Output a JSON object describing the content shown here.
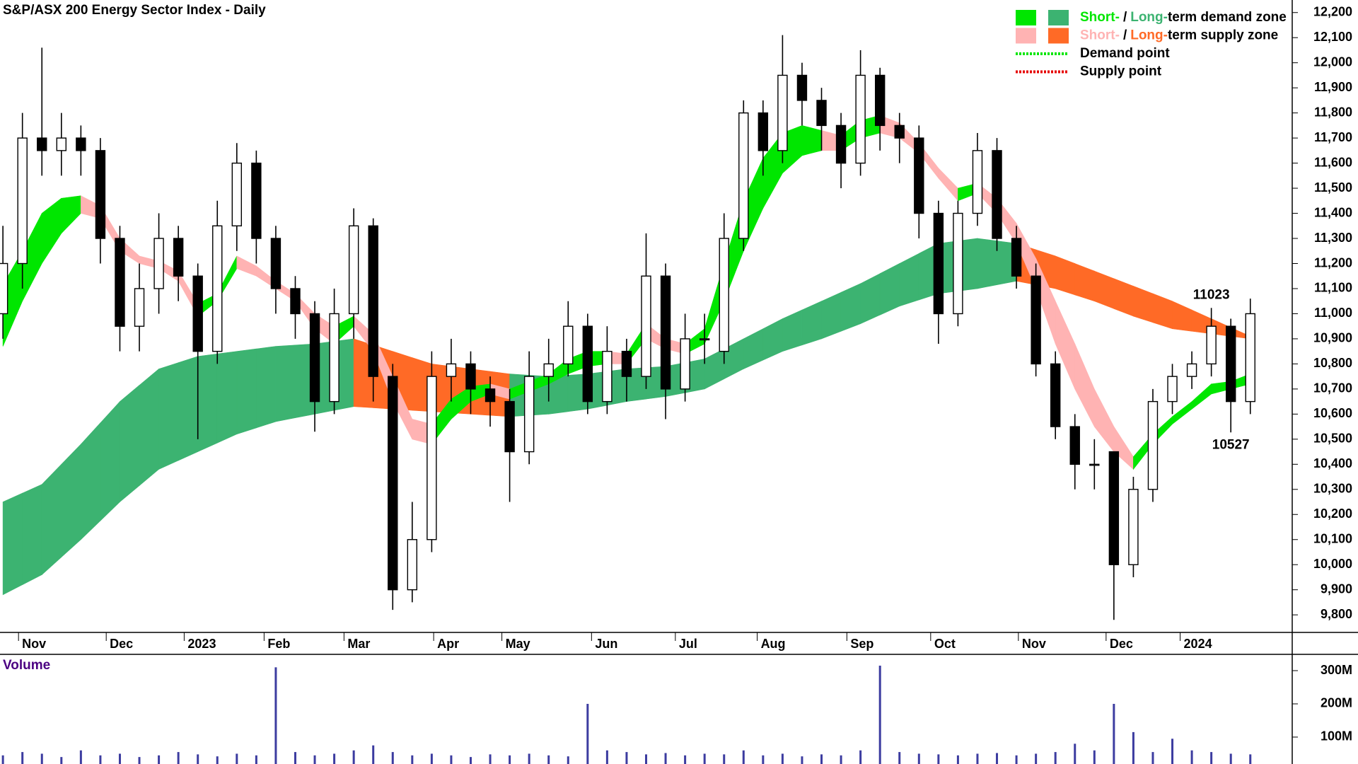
{
  "chart_data": {
    "type": "candlestick",
    "title": "S&P/ASX 200 Energy Sector Index - Daily",
    "xlim": [
      -0.15,
      66.15
    ],
    "xticks": [
      {
        "value": 0.8,
        "label": "Nov"
      },
      {
        "value": 5.3,
        "label": "Dec"
      },
      {
        "value": 9.3,
        "label": "2023"
      },
      {
        "value": 13.4,
        "label": "Feb"
      },
      {
        "value": 17.5,
        "label": "Mar"
      },
      {
        "value": 22.1,
        "label": "Apr"
      },
      {
        "value": 25.6,
        "label": "May"
      },
      {
        "value": 30.2,
        "label": "Jun"
      },
      {
        "value": 34.5,
        "label": "Jul"
      },
      {
        "value": 38.7,
        "label": "Aug"
      },
      {
        "value": 43.3,
        "label": "Sep"
      },
      {
        "value": 47.6,
        "label": "Oct"
      },
      {
        "value": 52.1,
        "label": "Nov"
      },
      {
        "value": 56.6,
        "label": "Dec"
      },
      {
        "value": 60.4,
        "label": "2024"
      }
    ],
    "ylim": [
      9730,
      12250
    ],
    "yticks": [
      {
        "value": 9800,
        "label": "9,800"
      },
      {
        "value": 9900,
        "label": "9,900"
      },
      {
        "value": 10000,
        "label": "10,000"
      },
      {
        "value": 10100,
        "label": "10,100"
      },
      {
        "value": 10200,
        "label": "10,200"
      },
      {
        "value": 10300,
        "label": "10,300"
      },
      {
        "value": 10400,
        "label": "10,400"
      },
      {
        "value": 10500,
        "label": "10,500"
      },
      {
        "value": 10600,
        "label": "10,600"
      },
      {
        "value": 10700,
        "label": "10,700"
      },
      {
        "value": 10800,
        "label": "10,800"
      },
      {
        "value": 10900,
        "label": "10,900"
      },
      {
        "value": 11000,
        "label": "11,000"
      },
      {
        "value": 11100,
        "label": "11,100"
      },
      {
        "value": 11200,
        "label": "11,200"
      },
      {
        "value": 11300,
        "label": "11,300"
      },
      {
        "value": 11400,
        "label": "11,400"
      },
      {
        "value": 11500,
        "label": "11,500"
      },
      {
        "value": 11600,
        "label": "11,600"
      },
      {
        "value": 11700,
        "label": "11,700"
      },
      {
        "value": 11800,
        "label": "11,800"
      },
      {
        "value": 11900,
        "label": "11,900"
      },
      {
        "value": 12000,
        "label": "12,000"
      },
      {
        "value": 12100,
        "label": "12,100"
      },
      {
        "value": 12200,
        "label": "12,200"
      }
    ],
    "open": [
      11000,
      11200,
      11700,
      11650,
      11700,
      11650,
      11300,
      10950,
      11100,
      11300,
      11150,
      10850,
      11350,
      11600,
      11300,
      11100,
      11000,
      10650,
      11000,
      11350,
      10750,
      9900,
      10100,
      10750,
      10800,
      10700,
      10650,
      10450,
      10750,
      10800,
      10950,
      10650,
      10850,
      10750,
      11150,
      10700,
      10900,
      10850,
      11300,
      11800,
      11650,
      11950,
      11850,
      11750,
      11600,
      11950,
      11750,
      11700,
      11400,
      11000,
      11400,
      11650,
      11300,
      11150,
      10800,
      10550,
      10400,
      10450,
      10000,
      10300,
      10650,
      10750,
      10800,
      10950,
      10650
    ],
    "high": [
      11350,
      11800,
      12060,
      11800,
      11750,
      11700,
      11350,
      11200,
      11400,
      11350,
      11200,
      11450,
      11680,
      11650,
      11350,
      11150,
      11050,
      11100,
      11420,
      11380,
      10800,
      10250,
      10850,
      10900,
      10850,
      10750,
      10700,
      10850,
      10900,
      11050,
      11000,
      10950,
      10900,
      11320,
      11200,
      11000,
      11000,
      11400,
      11850,
      11850,
      12110,
      12000,
      11900,
      11800,
      12050,
      11980,
      11800,
      11750,
      11450,
      11450,
      11720,
      11700,
      11350,
      11200,
      10850,
      10600,
      10500,
      10450,
      10350,
      10700,
      10800,
      10850,
      11023,
      10980,
      11060
    ],
    "low": [
      10900,
      11100,
      11550,
      11550,
      11550,
      11200,
      10850,
      10850,
      11000,
      11050,
      10500,
      10800,
      11250,
      11200,
      11000,
      10900,
      10530,
      10600,
      10900,
      10650,
      9820,
      9850,
      10050,
      10650,
      10600,
      10550,
      10250,
      10400,
      10650,
      10750,
      10600,
      10600,
      10650,
      10700,
      10580,
      10650,
      10800,
      10800,
      11250,
      11550,
      11600,
      11750,
      11650,
      11500,
      11550,
      11650,
      11600,
      11300,
      10880,
      10950,
      11350,
      11250,
      11100,
      10750,
      10500,
      10300,
      10300,
      9780,
      9950,
      10250,
      10600,
      10700,
      10750,
      10527,
      10600
    ],
    "close": [
      11200,
      11700,
      11650,
      11700,
      11650,
      11300,
      10950,
      11100,
      11300,
      11150,
      10850,
      11350,
      11600,
      11300,
      11100,
      11000,
      10650,
      11000,
      11350,
      10750,
      9900,
      10100,
      10750,
      10800,
      10700,
      10650,
      10450,
      10750,
      10800,
      10950,
      10650,
      10850,
      10750,
      11150,
      10700,
      10900,
      10900,
      11300,
      11800,
      11650,
      11950,
      11850,
      11750,
      11600,
      11950,
      11750,
      11700,
      11400,
      11000,
      11400,
      11650,
      11300,
      11150,
      10800,
      10550,
      10400,
      10400,
      10000,
      10300,
      10650,
      10750,
      10800,
      10950,
      10650,
      11000
    ],
    "up_color": "#ffffff",
    "down_color": "#000000",
    "long_term_zone": {
      "demand_color": "#3cb371",
      "supply_color": "#ff6a26",
      "upper": [
        10250,
        10285,
        10320,
        10400,
        10480,
        10565,
        10650,
        10715,
        10780,
        10805,
        10830,
        10840,
        10850,
        10860,
        10870,
        10875,
        10880,
        10890,
        10900,
        10875,
        10850,
        10825,
        10800,
        10790,
        10780,
        10770,
        10760,
        10755,
        10750,
        10755,
        10760,
        10770,
        10780,
        10785,
        10790,
        10805,
        10820,
        10860,
        10900,
        10940,
        10980,
        11015,
        11050,
        11085,
        11120,
        11160,
        11200,
        11240,
        11280,
        11290,
        11300,
        11290,
        11280,
        11255,
        11230,
        11200,
        11170,
        11140,
        11110,
        11080,
        11050,
        11015,
        10980,
        10945,
        10910
      ],
      "lower": [
        9880,
        9920,
        9960,
        10030,
        10100,
        10175,
        10250,
        10315,
        10380,
        10415,
        10450,
        10485,
        10520,
        10545,
        10570,
        10585,
        10600,
        10615,
        10630,
        10625,
        10620,
        10615,
        10610,
        10605,
        10600,
        10595,
        10590,
        10595,
        10600,
        10610,
        10620,
        10635,
        10650,
        10660,
        10670,
        10685,
        10700,
        10740,
        10780,
        10815,
        10850,
        10875,
        10900,
        10930,
        10960,
        10995,
        11030,
        11055,
        11080,
        11090,
        11100,
        11115,
        11130,
        11115,
        11100,
        11075,
        11050,
        11020,
        10990,
        10965,
        10940,
        10930,
        10920,
        10910,
        10900
      ]
    },
    "short_term_zone": {
      "demand_color": "#00e600",
      "supply_color": "#ffb3b3",
      "upper": [
        11115,
        11250,
        11400,
        11460,
        11470,
        11430,
        11300,
        11230,
        11210,
        11170,
        11040,
        11080,
        11230,
        11190,
        11130,
        11080,
        11000,
        10950,
        10990,
        10920,
        10750,
        10580,
        10560,
        10660,
        10710,
        10720,
        10700,
        10730,
        10760,
        10820,
        10850,
        10850,
        10840,
        10960,
        10900,
        10880,
        10940,
        11200,
        11450,
        11620,
        11720,
        11750,
        11730,
        11710,
        11770,
        11790,
        11760,
        11680,
        11580,
        11500,
        11520,
        11460,
        11360,
        11220,
        11050,
        10880,
        10700,
        10550,
        10430,
        10520,
        10590,
        10650,
        10720,
        10730,
        10760
      ],
      "lower": [
        10870,
        11050,
        11200,
        11320,
        11400,
        11380,
        11250,
        11200,
        11180,
        11130,
        10990,
        11050,
        11180,
        11150,
        11100,
        11050,
        10940,
        10880,
        10950,
        10850,
        10650,
        10500,
        10480,
        10580,
        10650,
        10680,
        10660,
        10690,
        10720,
        10760,
        10790,
        10800,
        10800,
        10900,
        10860,
        10840,
        10880,
        11050,
        11250,
        11420,
        11560,
        11630,
        11650,
        11650,
        11700,
        11720,
        11700,
        11640,
        11540,
        11450,
        11480,
        11400,
        11280,
        11100,
        10880,
        10700,
        10550,
        10450,
        10380,
        10480,
        10560,
        10620,
        10680,
        10700,
        10720
      ]
    },
    "annotations": [
      {
        "x": 62,
        "value": 11023,
        "placement": "above"
      },
      {
        "x": 63,
        "value": 10527,
        "placement": "below"
      }
    ],
    "legend": {
      "position": "top-right",
      "demand": {
        "short": "Short-",
        "sep": "/",
        "long": "Long-",
        "rest": "term demand zone"
      },
      "supply": {
        "short": "Short-",
        "sep": "/",
        "long": "Long-",
        "rest": "term supply zone"
      },
      "demand_point": {
        "label": "Demand point",
        "color": "#00e600"
      },
      "supply_point": {
        "label": "Supply point",
        "color": "#e60000"
      }
    },
    "volume": {
      "title": "Volume",
      "color": "#3c3ca0",
      "ylim": [
        19,
        349
      ],
      "yticks": [
        {
          "value": 100,
          "label": "100M"
        },
        {
          "value": 200,
          "label": "200M"
        },
        {
          "value": 300,
          "label": "300M"
        }
      ],
      "values": [
        45,
        55,
        50,
        40,
        60,
        45,
        50,
        40,
        45,
        55,
        48,
        42,
        50,
        45,
        310,
        55,
        45,
        50,
        60,
        75,
        55,
        45,
        50,
        45,
        40,
        48,
        45,
        50,
        45,
        42,
        200,
        60,
        55,
        48,
        52,
        45,
        50,
        48,
        60,
        45,
        50,
        42,
        48,
        45,
        60,
        315,
        55,
        50,
        48,
        45,
        50,
        52,
        45,
        50,
        55,
        80,
        60,
        200,
        115,
        55,
        95,
        60,
        55,
        50,
        48
      ]
    }
  }
}
